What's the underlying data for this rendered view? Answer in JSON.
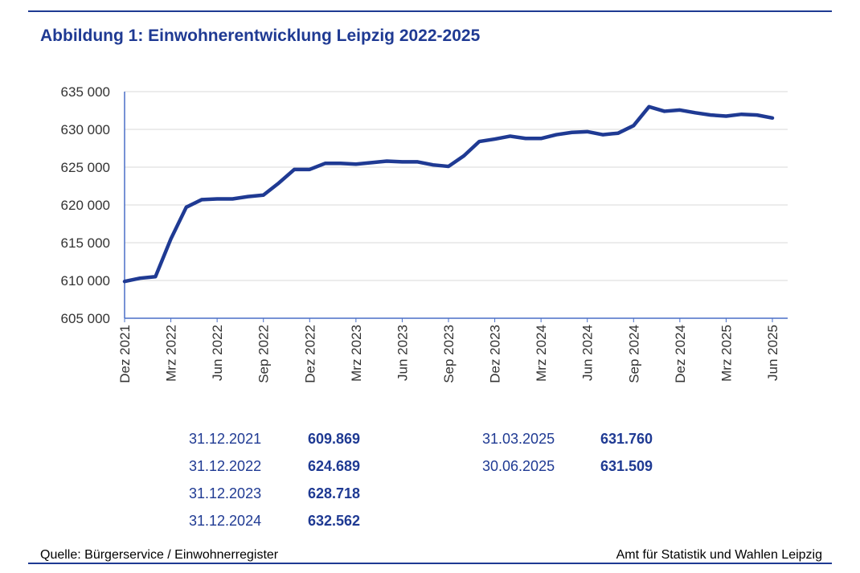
{
  "title": "Abbildung 1: Einwohnerentwicklung Leipzig 2022-2025",
  "chart_data": {
    "type": "line",
    "title": "Abbildung 1: Einwohnerentwicklung Leipzig 2022-2025",
    "ylim": [
      605000,
      635000
    ],
    "yticks": [
      "605 000",
      "610 000",
      "615 000",
      "620 000",
      "625 000",
      "630 000",
      "635 000"
    ],
    "xtick_labels": [
      "Dez 2021",
      "Mrz 2022",
      "Jun 2022",
      "Sep 2022",
      "Dez 2022",
      "Mrz 2023",
      "Jun 2023",
      "Sep 2023",
      "Dez 2023",
      "Mrz 2024",
      "Jun 2024",
      "Sep 2024",
      "Dez 2024",
      "Mrz 2025",
      "Jun 2025"
    ],
    "x_start": "2021-12",
    "x_end": "2025-06",
    "x_step": "month",
    "grid": true,
    "color": "#1f3a93",
    "values": [
      609869,
      610300,
      610500,
      615500,
      619700,
      620700,
      620800,
      620800,
      621100,
      621300,
      622900,
      624689,
      624700,
      625500,
      625500,
      625400,
      625600,
      625800,
      625700,
      625700,
      625300,
      625100,
      626500,
      628400,
      628718,
      629100,
      628800,
      628800,
      629300,
      629600,
      629700,
      629300,
      629500,
      630500,
      633000,
      632400,
      632562,
      632200,
      631900,
      631760,
      632000,
      631900,
      631509
    ]
  },
  "table": {
    "left": [
      {
        "date": "31.12.2021",
        "value": "609.869"
      },
      {
        "date": "31.12.2022",
        "value": "624.689"
      },
      {
        "date": "31.12.2023",
        "value": "628.718"
      },
      {
        "date": "31.12.2024",
        "value": "632.562"
      }
    ],
    "right": [
      {
        "date": "31.03.2025",
        "value": "631.760"
      },
      {
        "date": "30.06.2025",
        "value": "631.509"
      }
    ]
  },
  "footer": {
    "source": "Quelle: Bürgerservice / Einwohnerregister",
    "publisher": "Amt für Statistik und Wahlen Leipzig"
  }
}
